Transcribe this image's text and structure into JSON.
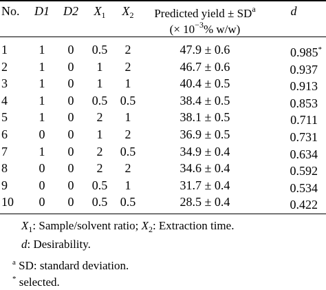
{
  "table": {
    "headers": {
      "no": "No.",
      "d1": "D1",
      "d2": "D2",
      "x1_var": "X",
      "x1_sub": "1",
      "x2_var": "X",
      "x2_sub": "2",
      "yield_line1_text": "Predicted yield ± SD",
      "yield_line1_sup": "a",
      "yield_line2_pre": "(× 10",
      "yield_line2_exp": "−3",
      "yield_line2_post": "% w/w)",
      "d": "d"
    },
    "rows": [
      {
        "no": "1",
        "d1": "1",
        "d2": "0",
        "x1": "0.5",
        "x2": "2",
        "yield": "47.9 ± 0.6",
        "d": "0.985",
        "d_mark": "*"
      },
      {
        "no": "2",
        "d1": "1",
        "d2": "0",
        "x1": "1",
        "x2": "2",
        "yield": "46.7 ± 0.6",
        "d": "0.937",
        "d_mark": ""
      },
      {
        "no": "3",
        "d1": "1",
        "d2": "0",
        "x1": "1",
        "x2": "1",
        "yield": "40.4 ± 0.5",
        "d": "0.913",
        "d_mark": ""
      },
      {
        "no": "4",
        "d1": "1",
        "d2": "0",
        "x1": "0.5",
        "x2": "0.5",
        "yield": "38.4 ± 0.5",
        "d": "0.853",
        "d_mark": ""
      },
      {
        "no": "5",
        "d1": "1",
        "d2": "0",
        "x1": "2",
        "x2": "1",
        "yield": "38.1 ± 0.5",
        "d": "0.711",
        "d_mark": ""
      },
      {
        "no": "6",
        "d1": "0",
        "d2": "0",
        "x1": "1",
        "x2": "2",
        "yield": "36.9 ± 0.5",
        "d": "0.731",
        "d_mark": ""
      },
      {
        "no": "7",
        "d1": "1",
        "d2": "0",
        "x1": "2",
        "x2": "0.5",
        "yield": "34.9 ± 0.4",
        "d": "0.634",
        "d_mark": ""
      },
      {
        "no": "8",
        "d1": "0",
        "d2": "0",
        "x1": "2",
        "x2": "2",
        "yield": "34.6 ± 0.4",
        "d": "0.592",
        "d_mark": ""
      },
      {
        "no": "9",
        "d1": "0",
        "d2": "0",
        "x1": "0.5",
        "x2": "1",
        "yield": "31.7 ± 0.4",
        "d": "0.534",
        "d_mark": ""
      },
      {
        "no": "10",
        "d1": "0",
        "d2": "0",
        "x1": "0.5",
        "x2": "0.5",
        "yield": "28.5 ± 0.4",
        "d": "0.422",
        "d_mark": ""
      }
    ]
  },
  "notes": {
    "n1_x1_var": "X",
    "n1_x1_sub": "1",
    "n1_x1_text": ": Sample/solvent ratio; ",
    "n1_x2_var": "X",
    "n1_x2_sub": "2",
    "n1_x2_text": ": Extraction time.",
    "n2_var": "d",
    "n2_text": ": Desirability.",
    "n3_mark": "a",
    "n3_text": " SD: standard deviation.",
    "n4_mark": "*",
    "n4_text": " selected."
  }
}
